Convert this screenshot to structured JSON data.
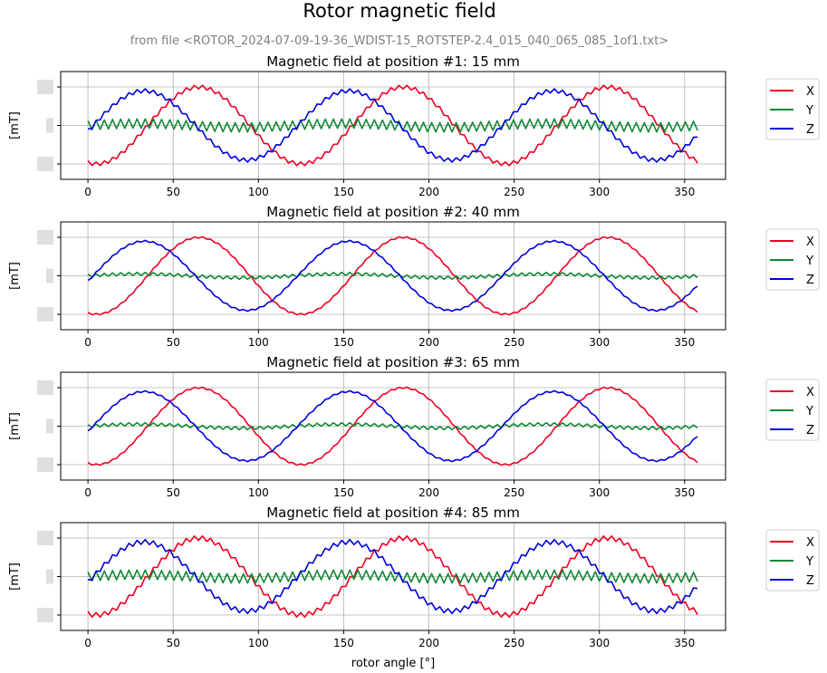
{
  "title": "Rotor magnetic field",
  "subtitle": "from file <ROTOR_2024-07-09-19-36_WDIST-15_ROTSTEP-2.4_015_040_065_085_1of1.txt>",
  "colors": {
    "X": "#ee0022",
    "Y": "#118833",
    "Z": "#0000dd",
    "grid": "#b0b0b0",
    "axis": "#000000"
  },
  "chart_data": [
    {
      "type": "line",
      "title": "Magnetic field at position #1:  15 mm",
      "ylabel": "[mT]",
      "xlabel": "",
      "xlim": [
        -16,
        374
      ],
      "ylim": [
        -1.4,
        1.4
      ],
      "xticks": [
        0,
        50,
        100,
        150,
        200,
        250,
        300,
        350
      ],
      "legend": {
        "placement": "outside-right",
        "entries": [
          "X",
          "Y",
          "Z"
        ]
      },
      "series": [
        {
          "name": "X",
          "amplitude": 1.0,
          "phase_deg": 65,
          "period_deg": 120,
          "ripple": 0.05
        },
        {
          "name": "Y",
          "amplitude": 0.05,
          "phase_deg": 30,
          "period_deg": 120,
          "ripple": 0.12
        },
        {
          "name": "Z",
          "amplitude": 0.9,
          "phase_deg": 33,
          "period_deg": 120,
          "ripple": 0.05
        }
      ],
      "x_range": [
        0,
        357.6
      ],
      "x_step": 2.4
    },
    {
      "type": "line",
      "title": "Magnetic field at position #2:  40 mm",
      "ylabel": "[mT]",
      "xlabel": "",
      "xlim": [
        -16,
        374
      ],
      "ylim": [
        -1.4,
        1.4
      ],
      "xticks": [
        0,
        50,
        100,
        150,
        200,
        250,
        300,
        350
      ],
      "legend": {
        "placement": "outside-right",
        "entries": [
          "X",
          "Y",
          "Z"
        ]
      },
      "series": [
        {
          "name": "X",
          "amplitude": 1.0,
          "phase_deg": 65,
          "period_deg": 120,
          "ripple": 0.02
        },
        {
          "name": "Y",
          "amplitude": 0.05,
          "phase_deg": 30,
          "period_deg": 120,
          "ripple": 0.04
        },
        {
          "name": "Z",
          "amplitude": 0.9,
          "phase_deg": 33,
          "period_deg": 120,
          "ripple": 0.02
        }
      ],
      "x_range": [
        0,
        357.6
      ],
      "x_step": 2.4
    },
    {
      "type": "line",
      "title": "Magnetic field at position #3:  65 mm",
      "ylabel": "[mT]",
      "xlabel": "",
      "xlim": [
        -16,
        374
      ],
      "ylim": [
        -1.4,
        1.4
      ],
      "xticks": [
        0,
        50,
        100,
        150,
        200,
        250,
        300,
        350
      ],
      "legend": {
        "placement": "outside-right",
        "entries": [
          "X",
          "Y",
          "Z"
        ]
      },
      "series": [
        {
          "name": "X",
          "amplitude": 1.0,
          "phase_deg": 65,
          "period_deg": 120,
          "ripple": 0.02
        },
        {
          "name": "Y",
          "amplitude": 0.05,
          "phase_deg": 30,
          "period_deg": 120,
          "ripple": 0.04
        },
        {
          "name": "Z",
          "amplitude": 0.9,
          "phase_deg": 33,
          "period_deg": 120,
          "ripple": 0.02
        }
      ],
      "x_range": [
        0,
        357.6
      ],
      "x_step": 2.4
    },
    {
      "type": "line",
      "title": "Magnetic field at position #4:  85 mm",
      "ylabel": "[mT]",
      "xlabel": "rotor angle [°]",
      "xlim": [
        -16,
        374
      ],
      "ylim": [
        -1.4,
        1.4
      ],
      "xticks": [
        0,
        50,
        100,
        150,
        200,
        250,
        300,
        350
      ],
      "legend": {
        "placement": "outside-right",
        "entries": [
          "X",
          "Y",
          "Z"
        ]
      },
      "series": [
        {
          "name": "X",
          "amplitude": 1.0,
          "phase_deg": 65,
          "period_deg": 120,
          "ripple": 0.06
        },
        {
          "name": "Y",
          "amplitude": 0.05,
          "phase_deg": 30,
          "period_deg": 120,
          "ripple": 0.12
        },
        {
          "name": "Z",
          "amplitude": 0.9,
          "phase_deg": 33,
          "period_deg": 120,
          "ripple": 0.06
        }
      ],
      "x_range": [
        0,
        357.6
      ],
      "x_step": 2.4
    }
  ]
}
